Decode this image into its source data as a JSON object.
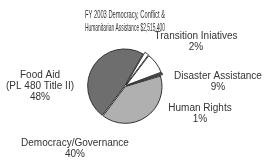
{
  "chart_data": {
    "type": "pie",
    "title": "FY 2003 Democracy, Conflict & Humanitarian Assistance $2,515,400",
    "categories": [
      "Transition Iniatives",
      "Disaster Assistance",
      "Human Rights",
      "Democracy/Governance",
      "Food Aid (PL 480 Title II)"
    ],
    "values": [
      2,
      9,
      1,
      40,
      48
    ],
    "value_labels": [
      "2%",
      "9%",
      "1%",
      "40%",
      "48%"
    ],
    "colors": [
      "#ffffff",
      "#ffffff",
      "#555555",
      "#b0b0b0",
      "#6e6e6e"
    ],
    "data_labels": true
  }
}
